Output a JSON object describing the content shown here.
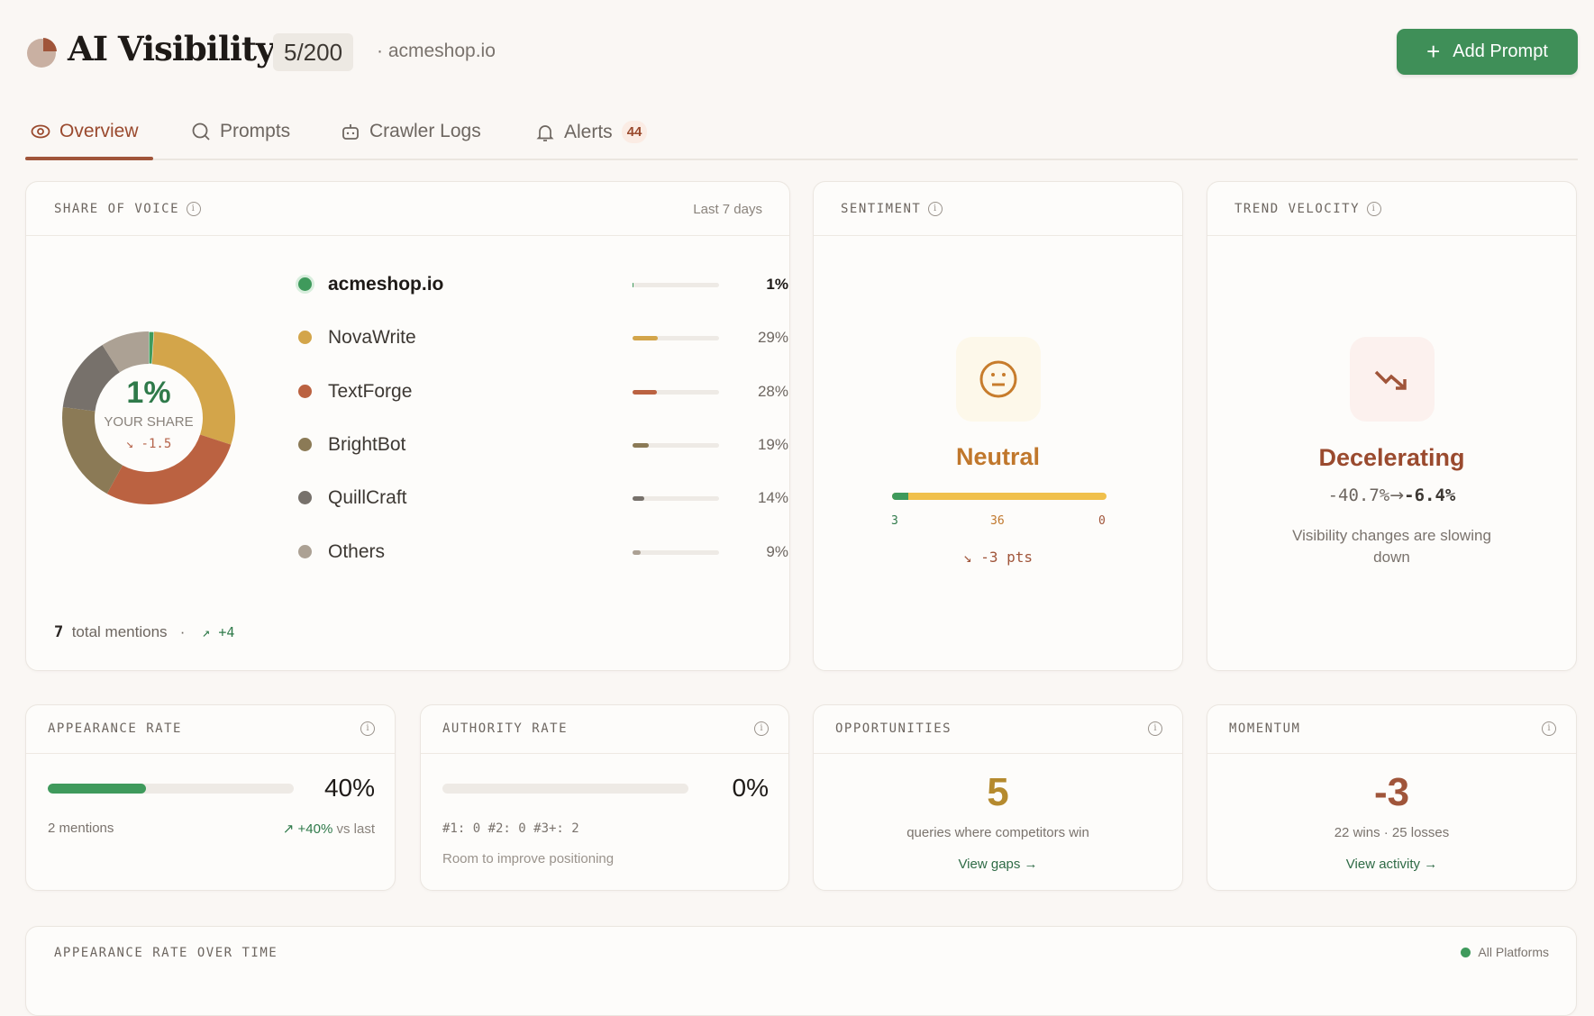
{
  "header": {
    "title": "AI Visibility",
    "quota": "5/200",
    "domain": "· acmeshop.io",
    "add_prompt": "Add Prompt",
    "logo_icon": "pie-chart-icon"
  },
  "tabs": [
    {
      "label": "Overview",
      "icon": "eye-icon",
      "active": true
    },
    {
      "label": "Prompts",
      "icon": "search-icon"
    },
    {
      "label": "Crawler Logs",
      "icon": "robot-icon"
    },
    {
      "label": "Alerts",
      "icon": "bell-icon",
      "badge": "44"
    }
  ],
  "share_of_voice": {
    "title": "SHARE OF VOICE",
    "period": "Last 7 days",
    "center_value": "1%",
    "center_label": "YOUR SHARE",
    "center_delta": "↘ -1.5",
    "items": [
      {
        "name": "acmeshop.io",
        "pct": 1,
        "label": "1%",
        "color": "#3f9a5c"
      },
      {
        "name": "NovaWrite",
        "pct": 29,
        "label": "29%",
        "color": "#d3a54a"
      },
      {
        "name": "TextForge",
        "pct": 28,
        "label": "28%",
        "color": "#bb6241"
      },
      {
        "name": "BrightBot",
        "pct": 19,
        "label": "19%",
        "color": "#8b7a56"
      },
      {
        "name": "QuillCraft",
        "pct": 14,
        "label": "14%",
        "color": "#77716b"
      },
      {
        "name": "Others",
        "pct": 9,
        "label": "9%",
        "color": "#aca194"
      }
    ],
    "total": "7",
    "total_label": "total mentions",
    "total_delta": "↗ +4"
  },
  "sentiment": {
    "title": "SENTIMENT",
    "value": "Neutral",
    "positive": "3",
    "neutral": "36",
    "negative": "0",
    "delta": "↘ -3 pts",
    "icon": "neutral-face-icon"
  },
  "trend": {
    "title": "TREND VELOCITY",
    "value": "Decelerating",
    "from": "-40.7%",
    "arrow": "→",
    "to": "-6.4%",
    "description": "Visibility changes are slowing down",
    "icon": "trend-down-icon"
  },
  "appearance": {
    "title": "APPEARANCE RATE",
    "value": "40%",
    "progress": 40,
    "mentions": "2 mentions",
    "delta": "↗ +40%",
    "delta_suffix": "vs last"
  },
  "authority": {
    "title": "AUTHORITY RATE",
    "value": "0%",
    "progress": 0,
    "ranks": "#1: 0 #2: 0 #3+: 2",
    "note": "Room to improve positioning"
  },
  "opportunities": {
    "title": "OPPORTUNITIES",
    "value": "5",
    "description": "queries where competitors win",
    "link": "View gaps →"
  },
  "momentum": {
    "title": "MOMENTUM",
    "value": "-3",
    "description": "22 wins · 25 losses",
    "link": "View activity →"
  },
  "chart_section": {
    "title": "APPEARANCE RATE OVER TIME",
    "filter": "All Platforms"
  }
}
